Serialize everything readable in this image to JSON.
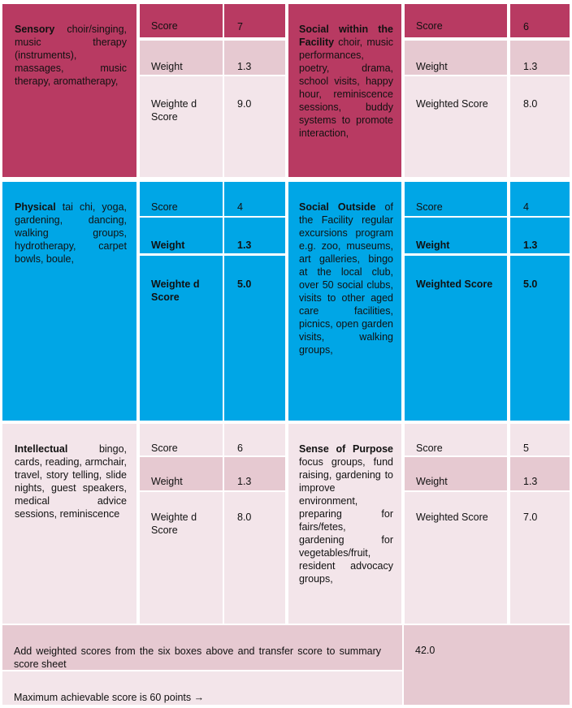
{
  "categories": [
    {
      "title": "Sensory",
      "description": "choir/singing, music therapy (instruments), massages, music therapy, aromatherapy,",
      "score_label": "Score",
      "score": "7",
      "weight_label": "Weight",
      "weight": "1.3",
      "weighted_label": "Weighte d Score",
      "weighted_score": "9.0"
    },
    {
      "title": "Social within the Facility",
      "description": "choir, music performances, poetry, drama, school visits, happy hour, reminiscence sessions, buddy systems to promote interaction,",
      "score_label": "Score",
      "score": "6",
      "weight_label": "Weight",
      "weight": "1.3",
      "weighted_label": "Weighted Score",
      "weighted_score": "8.0"
    },
    {
      "title": "Physical",
      "description": "tai chi, yoga, gardening, dancing, walking groups, hydrotherapy, carpet bowls, boule,",
      "score_label": "Score",
      "score": "4",
      "weight_label": "Weight",
      "weight": "1.3",
      "weighted_label": "Weighte d Score",
      "weighted_score": "5.0"
    },
    {
      "title": "Social Outside",
      "description": "of the Facility regular excursions program e.g. zoo, museums, art galleries, bingo at the local club, over 50 social clubs, visits to other aged care facilities, picnics, open garden visits, walking groups,",
      "score_label": "Score",
      "score": "4",
      "weight_label": "Weight",
      "weight": "1.3",
      "weighted_label": "Weighted Score",
      "weighted_score": "5.0"
    },
    {
      "title": "Intellectual",
      "description": "bingo, cards, reading, armchair, travel, story telling, slide nights, guest speakers, medical advice sessions, reminiscence",
      "score_label": "Score",
      "score": "6",
      "weight_label": "Weight",
      "weight": "1.3",
      "weighted_label": "Weighte d Score",
      "weighted_score": "8.0"
    },
    {
      "title": "Sense of Purpose",
      "description": "focus groups, fund raising, gardening to improve environment, preparing for fairs/fetes, gardening for vegetables/fruit, resident advocacy groups,",
      "score_label": "Score",
      "score": "5",
      "weight_label": "Weight",
      "weight": "1.3",
      "weighted_label": "Weighted Score",
      "weighted_score": "7.0"
    }
  ],
  "summary": {
    "instruction": "Add weighted scores from the six boxes above and transfer score to summary score sheet",
    "total": "42.0",
    "max_note": "Maximum achievable score is 60 points →"
  },
  "colors": {
    "sensory": "#b83a62",
    "physical": "#00a6e6",
    "intellectual": "#f3e5ea",
    "weight_row": "#e6c9d1"
  }
}
